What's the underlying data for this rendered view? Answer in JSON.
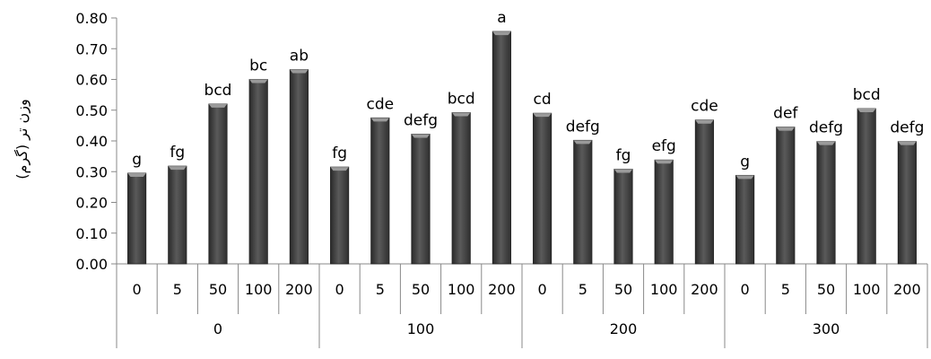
{
  "chart_data": {
    "type": "bar",
    "ylabel": "وزن تر (گرم)",
    "ylim": [
      0,
      0.8
    ],
    "ytick_step": 0.1,
    "ytick_labels": [
      "0.00",
      "0.10",
      "0.20",
      "0.30",
      "0.40",
      "0.50",
      "0.60",
      "0.70",
      "0.80"
    ],
    "grid": false,
    "legend": "none",
    "bar_color": "#4a4a4a",
    "groups": [
      {
        "label": "0",
        "categories": [
          "0",
          "5",
          "50",
          "100",
          "200"
        ],
        "values": [
          0.295,
          0.318,
          0.52,
          0.6,
          0.632
        ],
        "labels": [
          "g",
          "fg",
          "bcd",
          "bc",
          "ab"
        ]
      },
      {
        "label": "100",
        "categories": [
          "0",
          "5",
          "50",
          "100",
          "200"
        ],
        "values": [
          0.315,
          0.475,
          0.422,
          0.492,
          0.756
        ],
        "labels": [
          "fg",
          "cde",
          "defg",
          "bcd",
          "a"
        ]
      },
      {
        "label": "200",
        "categories": [
          "0",
          "5",
          "50",
          "100",
          "200"
        ],
        "values": [
          0.49,
          0.402,
          0.308,
          0.338,
          0.468
        ],
        "labels": [
          "cd",
          "defg",
          "fg",
          "efg",
          "cde"
        ]
      },
      {
        "label": "300",
        "categories": [
          "0",
          "5",
          "50",
          "100",
          "200"
        ],
        "values": [
          0.288,
          0.445,
          0.398,
          0.505,
          0.398
        ],
        "labels": [
          "g",
          "def",
          "defg",
          "bcd",
          "defg"
        ]
      }
    ]
  }
}
